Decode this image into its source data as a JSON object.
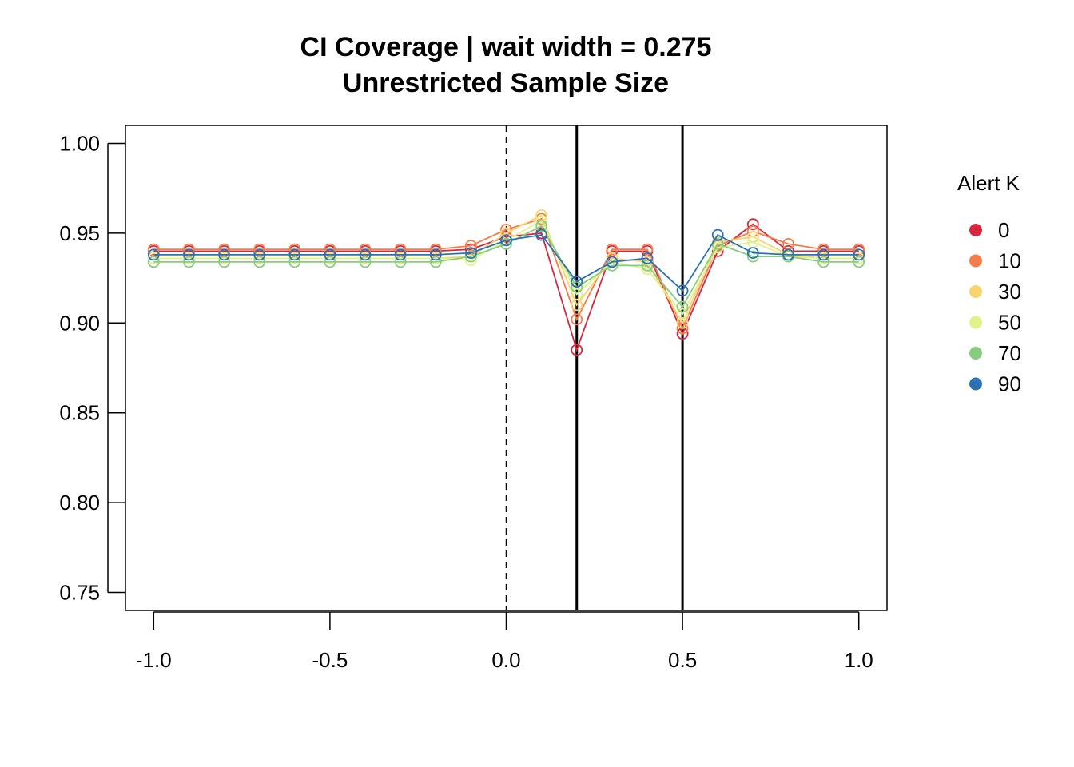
{
  "chart_data": {
    "type": "line",
    "title": "CI Coverage | wait width = 0.275",
    "subtitle": "Unrestricted Sample Size",
    "xlabel": "",
    "ylabel": "",
    "xlim": [
      -1.08,
      1.08
    ],
    "ylim": [
      0.74,
      1.01
    ],
    "x_ticks": [
      -1.0,
      -0.5,
      0.0,
      0.5,
      1.0
    ],
    "x_tick_labels": [
      "-1.0",
      "-0.5",
      "0.0",
      "0.5",
      "1.0"
    ],
    "y_ticks": [
      0.75,
      0.8,
      0.85,
      0.9,
      0.95,
      1.0
    ],
    "y_tick_labels": [
      "0.75",
      "0.80",
      "0.85",
      "0.90",
      "0.95",
      "1.00"
    ],
    "grid": false,
    "legend_title": "Alert K",
    "legend_placement": "right",
    "reference_lines": [
      {
        "x": 0.0,
        "style": "dashed"
      },
      {
        "x": 0.2,
        "style": "solid"
      },
      {
        "x": 0.5,
        "style": "solid"
      }
    ],
    "x": [
      -1.0,
      -0.9,
      -0.8,
      -0.7,
      -0.6,
      -0.5,
      -0.4,
      -0.3,
      -0.2,
      -0.1,
      0.0,
      0.1,
      0.2,
      0.3,
      0.4,
      0.5,
      0.6,
      0.7,
      0.8,
      0.9,
      1.0
    ],
    "series": [
      {
        "name": "0",
        "color": "#d7263d",
        "values": [
          0.94,
          0.94,
          0.94,
          0.94,
          0.94,
          0.94,
          0.94,
          0.94,
          0.94,
          0.941,
          0.948,
          0.95,
          0.885,
          0.94,
          0.94,
          0.894,
          0.94,
          0.955,
          0.94,
          0.94,
          0.94
        ]
      },
      {
        "name": "10",
        "color": "#f57d4a",
        "values": [
          0.941,
          0.941,
          0.941,
          0.941,
          0.941,
          0.941,
          0.941,
          0.941,
          0.941,
          0.943,
          0.952,
          0.958,
          0.902,
          0.941,
          0.941,
          0.897,
          0.943,
          0.951,
          0.944,
          0.941,
          0.941
        ]
      },
      {
        "name": "30",
        "color": "#f8d36e",
        "values": [
          0.936,
          0.936,
          0.936,
          0.936,
          0.936,
          0.936,
          0.936,
          0.936,
          0.936,
          0.937,
          0.95,
          0.96,
          0.91,
          0.936,
          0.934,
          0.9,
          0.945,
          0.948,
          0.938,
          0.936,
          0.936
        ]
      },
      {
        "name": "50",
        "color": "#e2f28b",
        "values": [
          0.936,
          0.936,
          0.936,
          0.936,
          0.936,
          0.936,
          0.936,
          0.936,
          0.936,
          0.935,
          0.946,
          0.957,
          0.916,
          0.934,
          0.93,
          0.905,
          0.942,
          0.945,
          0.937,
          0.936,
          0.936
        ]
      },
      {
        "name": "70",
        "color": "#86cd7f",
        "values": [
          0.934,
          0.934,
          0.934,
          0.934,
          0.934,
          0.934,
          0.934,
          0.934,
          0.934,
          0.937,
          0.944,
          0.954,
          0.92,
          0.932,
          0.932,
          0.909,
          0.944,
          0.937,
          0.937,
          0.934,
          0.934
        ]
      },
      {
        "name": "90",
        "color": "#2b72b5",
        "values": [
          0.938,
          0.938,
          0.938,
          0.938,
          0.938,
          0.938,
          0.938,
          0.938,
          0.938,
          0.939,
          0.946,
          0.949,
          0.923,
          0.934,
          0.936,
          0.918,
          0.949,
          0.939,
          0.938,
          0.938,
          0.938
        ]
      }
    ]
  }
}
